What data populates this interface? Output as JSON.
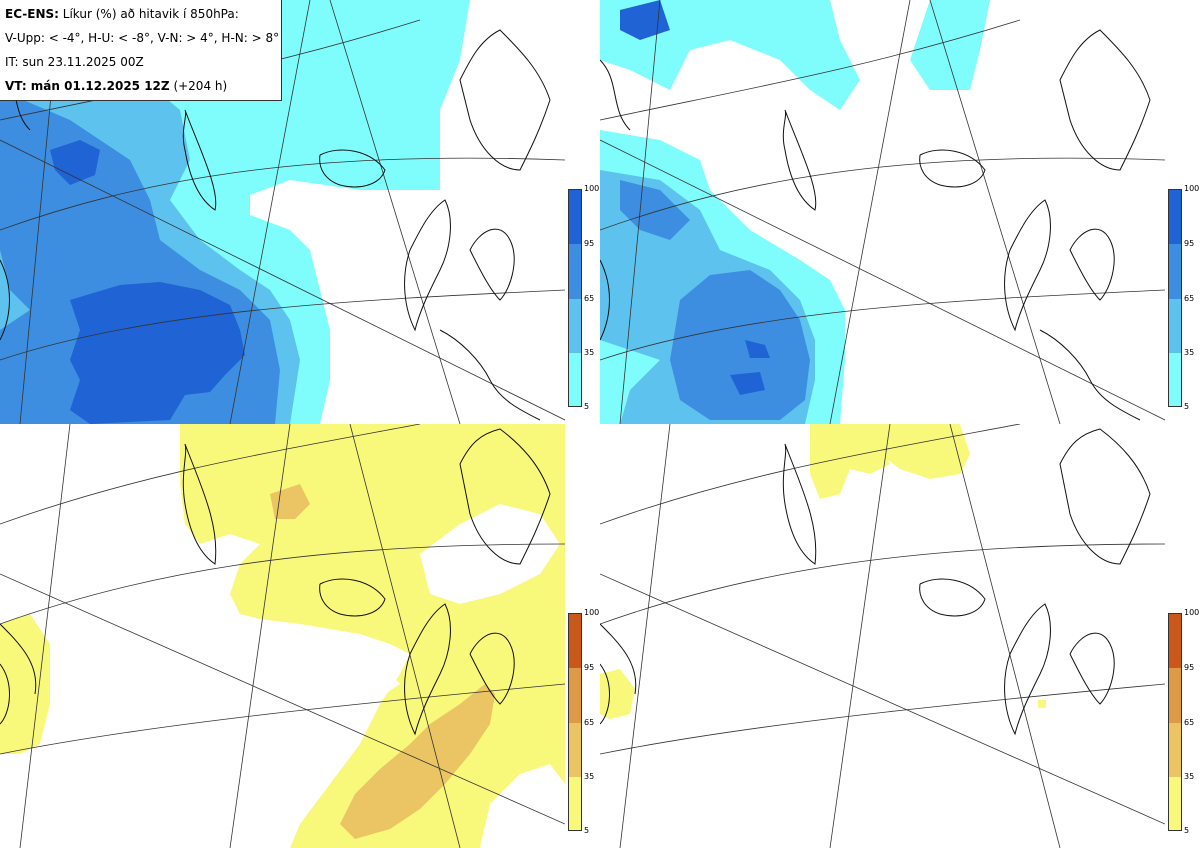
{
  "header": {
    "line1_bold": "EC-ENS:",
    "line1_rest": "Líkur (%) að hitavik í 850hPa:",
    "line2": "V-Upp: < -4°, H-U: < -8°, V-N: > 4°, H-N: > 8°",
    "line3": "IT: sun 23.11.2025 00Z",
    "line4_bold": "VT: mán 01.12.2025 12Z",
    "line4_rest": "(+204 h)"
  },
  "panels": [
    {
      "id": "V-Upp",
      "palette": "cold",
      "threshold": "< -4°"
    },
    {
      "id": "V-N",
      "palette": "warm",
      "threshold": "> 4°"
    },
    {
      "id": "H-U",
      "palette": "cold",
      "threshold": "< -8°"
    },
    {
      "id": "H-N",
      "palette": "warm",
      "threshold": "> 8°"
    }
  ],
  "colorbars": {
    "cold": {
      "ticks": [
        "100",
        "95",
        "65",
        "35",
        "5"
      ],
      "colors": [
        "#1f63d4",
        "#3d8ee0",
        "#5ec2ee",
        "#7ffdfd"
      ]
    },
    "warm": {
      "ticks": [
        "100",
        "95",
        "65",
        "35",
        "5"
      ],
      "colors": [
        "#c9581a",
        "#df9a48",
        "#ebc463",
        "#f8f87a"
      ]
    }
  }
}
